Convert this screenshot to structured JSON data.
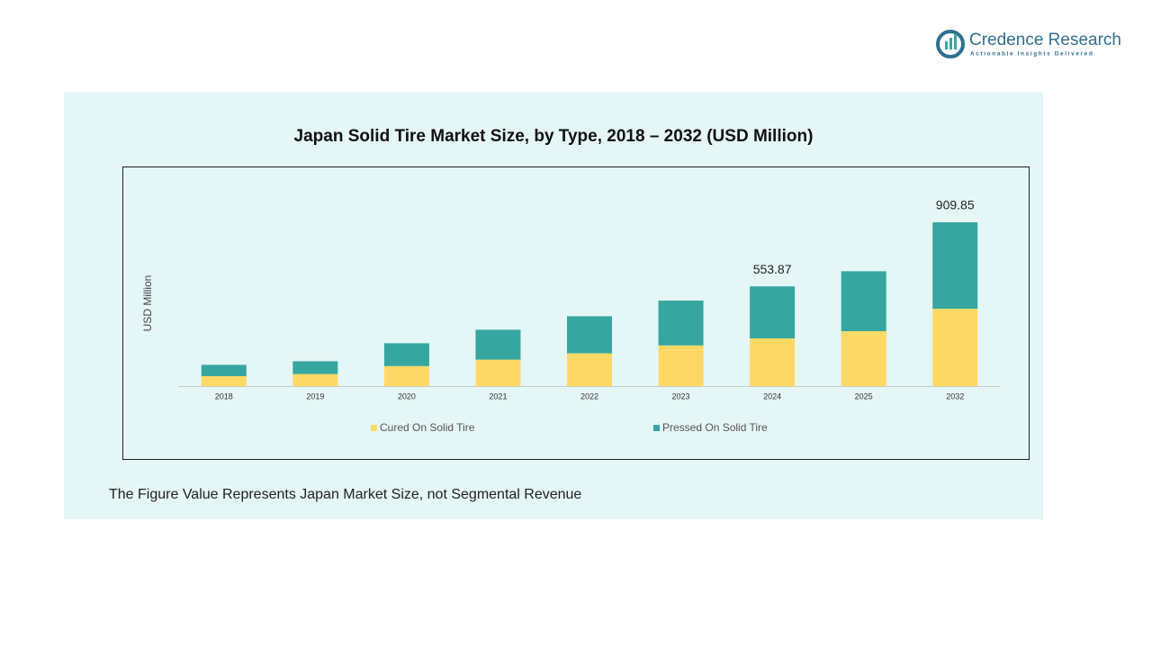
{
  "brand": {
    "name": "Credence Research",
    "tagline": "Actionable Insights Delivered"
  },
  "chart_data": {
    "type": "stacked_bar",
    "title": "Japan Solid Tire Market Size, by Type, 2018 – 2032 (USD Million)",
    "y_label": "USD Million",
    "categories": [
      "2018",
      "2019",
      "2020",
      "2021",
      "2022",
      "2023",
      "2024",
      "2025",
      "2032"
    ],
    "series": [
      {
        "name": "Cured On Solid Tire",
        "color": "#FFD966",
        "values": [
          55,
          67,
          111,
          147,
          182,
          226,
          265,
          305,
          430
        ]
      },
      {
        "name": "Pressed On Solid Tire",
        "color": "#36A6A0",
        "values": [
          63,
          71,
          127,
          166,
          206,
          249,
          288.87,
          333,
          479.85
        ]
      }
    ],
    "annotations": [
      {
        "category": "2024",
        "text": "553.87"
      },
      {
        "category": "2032",
        "text": "909.85"
      }
    ],
    "legend": "bottom"
  },
  "footnote": "The Figure Value Represents Japan Market Size, not Segmental Revenue"
}
